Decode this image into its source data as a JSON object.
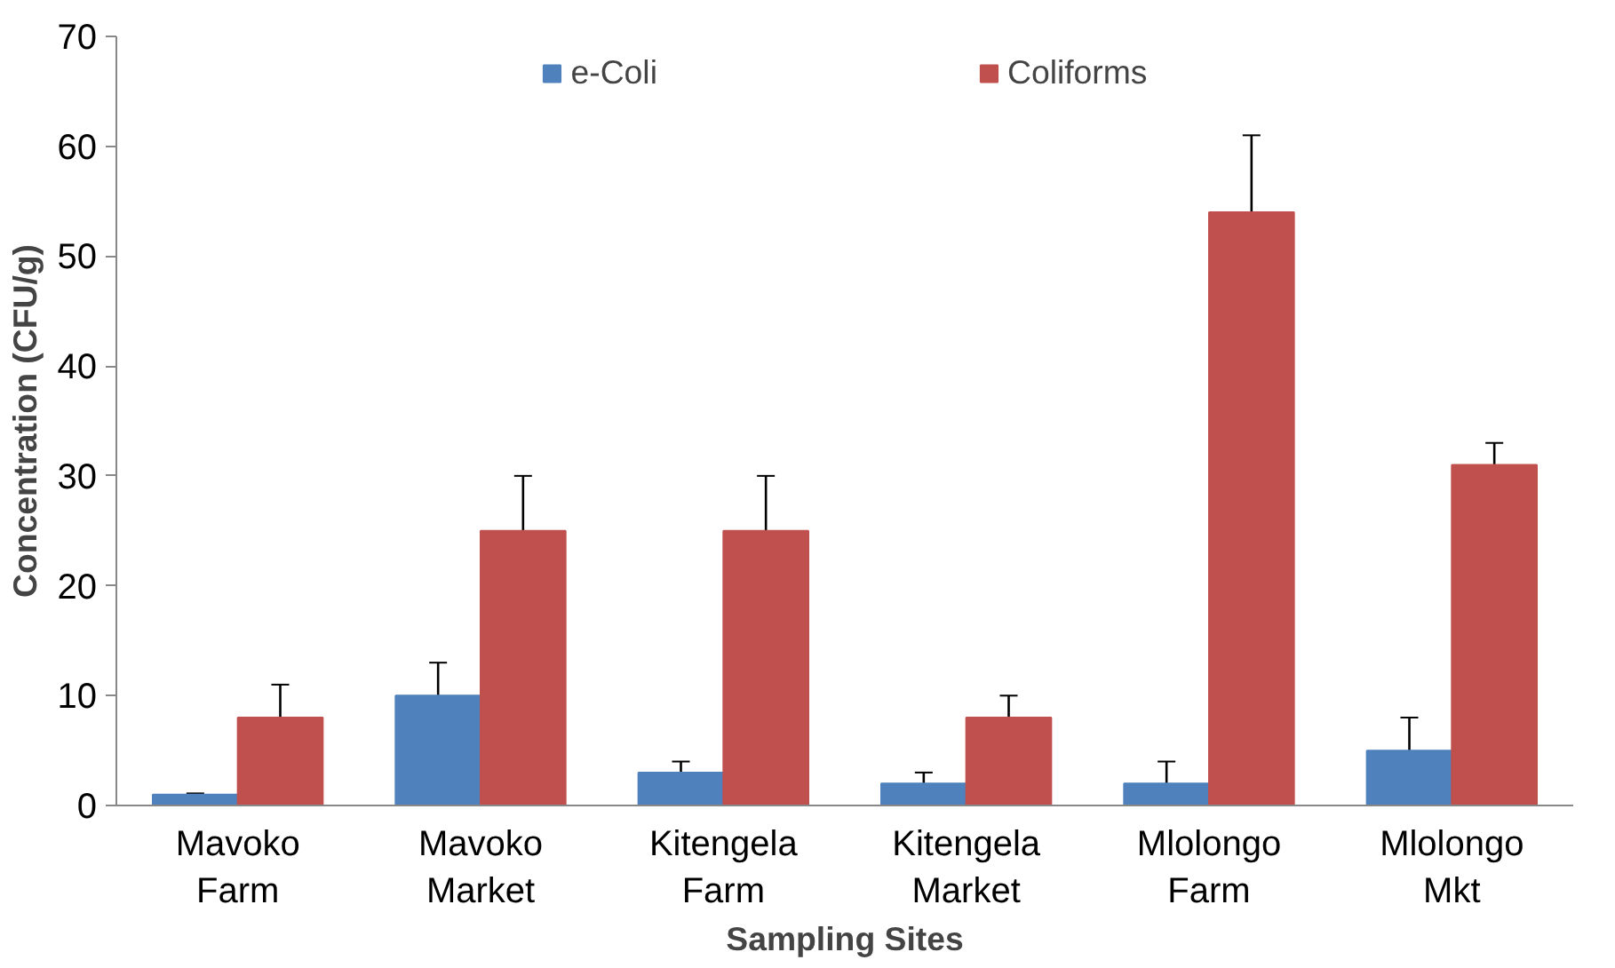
{
  "chart_data": {
    "type": "bar",
    "xlabel": "Sampling Sites",
    "ylabel": "Concentration (CFU/g)",
    "categories": [
      "Mavoko Farm",
      "Mavoko Market",
      "Kitengela Farm",
      "Kitengela Market",
      "Mlolongo Farm",
      "Mlolongo Mkt"
    ],
    "series": [
      {
        "name": "e-Coli",
        "color": "#4f81bd",
        "values": [
          1,
          10,
          3,
          2,
          2,
          5
        ],
        "errors": [
          0.1,
          3,
          1,
          1,
          2,
          3
        ]
      },
      {
        "name": "Coliforms",
        "color": "#c0504d",
        "values": [
          8,
          25,
          25,
          8,
          54,
          31
        ],
        "errors": [
          3,
          5,
          5,
          2,
          7,
          2
        ]
      }
    ],
    "ylim": [
      0,
      70
    ],
    "yticks": [
      0,
      10,
      20,
      30,
      40,
      50,
      60,
      70
    ],
    "grid": false,
    "legend": "top"
  }
}
